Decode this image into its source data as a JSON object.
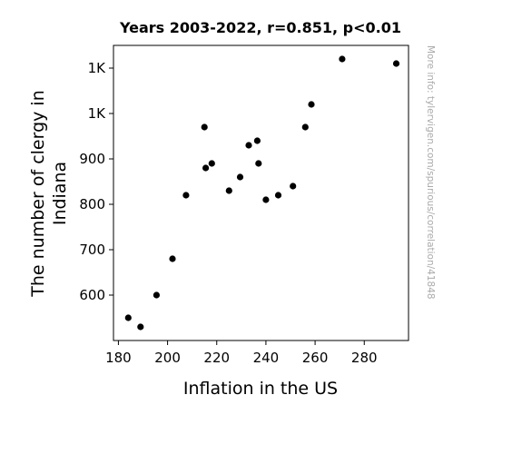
{
  "chart_data": {
    "type": "scatter",
    "title": "Years 2003-2022, r=0.851, p<0.01",
    "xlabel": "Inflation in the US",
    "ylabel_line1": "The number of clergy in",
    "ylabel_line2": "Indiana",
    "xlim": [
      178,
      298
    ],
    "ylim": [
      500,
      1150
    ],
    "x_ticks": [
      {
        "value": 180,
        "label": "180"
      },
      {
        "value": 200,
        "label": "200"
      },
      {
        "value": 220,
        "label": "220"
      },
      {
        "value": 240,
        "label": "240"
      },
      {
        "value": 260,
        "label": "260"
      },
      {
        "value": 280,
        "label": "280"
      }
    ],
    "y_ticks": [
      {
        "value": 600,
        "label": "600"
      },
      {
        "value": 700,
        "label": "700"
      },
      {
        "value": 800,
        "label": "800"
      },
      {
        "value": 900,
        "label": "900"
      },
      {
        "value": 1000,
        "label": "1K"
      },
      {
        "value": 1100,
        "label": "1K"
      }
    ],
    "points": [
      {
        "x": 184,
        "y": 550
      },
      {
        "x": 189,
        "y": 530
      },
      {
        "x": 195.5,
        "y": 600
      },
      {
        "x": 202,
        "y": 680
      },
      {
        "x": 207.5,
        "y": 820
      },
      {
        "x": 215,
        "y": 970
      },
      {
        "x": 215.5,
        "y": 880
      },
      {
        "x": 218,
        "y": 890
      },
      {
        "x": 225,
        "y": 830
      },
      {
        "x": 229.5,
        "y": 860
      },
      {
        "x": 233,
        "y": 930
      },
      {
        "x": 236.5,
        "y": 940
      },
      {
        "x": 237,
        "y": 890
      },
      {
        "x": 240,
        "y": 810
      },
      {
        "x": 245,
        "y": 820
      },
      {
        "x": 251,
        "y": 840
      },
      {
        "x": 256,
        "y": 970
      },
      {
        "x": 258.5,
        "y": 1020
      },
      {
        "x": 271,
        "y": 1120
      },
      {
        "x": 293,
        "y": 1110
      }
    ],
    "marker_color": "#000000",
    "grid": false,
    "legend": "none"
  },
  "watermark": "More info: tylervigen.com/spurious/correlation/41848"
}
